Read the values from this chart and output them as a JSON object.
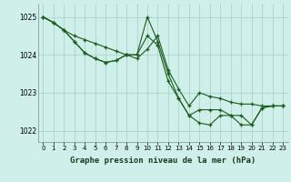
{
  "background_color": "#cff0ea",
  "grid_color": "#aad4cc",
  "line_color": "#1a5c1a",
  "title": "Graphe pression niveau de la mer (hPa)",
  "xlim": [
    -0.5,
    23.5
  ],
  "ylim": [
    1021.7,
    1025.35
  ],
  "yticks": [
    1022,
    1023,
    1024,
    1025
  ],
  "xticks": [
    0,
    1,
    2,
    3,
    4,
    5,
    6,
    7,
    8,
    9,
    10,
    11,
    12,
    13,
    14,
    15,
    16,
    17,
    18,
    19,
    20,
    21,
    22,
    23
  ],
  "series": [
    [
      1025.0,
      1024.85,
      1024.65,
      1024.5,
      1024.4,
      1024.3,
      1024.2,
      1024.1,
      1024.0,
      1023.9,
      1024.15,
      1024.5,
      1023.6,
      1023.1,
      1022.65,
      1023.0,
      1022.9,
      1022.85,
      1022.75,
      1022.7,
      1022.7,
      1022.65,
      1022.65,
      1022.65
    ],
    [
      1025.0,
      1024.85,
      1024.65,
      1024.35,
      1024.05,
      1023.9,
      1023.8,
      1023.85,
      1024.0,
      1024.0,
      1025.0,
      1024.35,
      1023.5,
      1022.85,
      1022.4,
      1022.2,
      1022.15,
      1022.4,
      1022.4,
      1022.15,
      1022.15,
      1022.6,
      1022.65,
      1022.65
    ],
    [
      1025.0,
      1024.85,
      1024.65,
      1024.35,
      1024.05,
      1023.9,
      1023.8,
      1023.85,
      1024.0,
      1024.0,
      1024.5,
      1024.25,
      1023.3,
      1022.85,
      1022.4,
      1022.55,
      1022.55,
      1022.55,
      1022.4,
      1022.4,
      1022.15,
      1022.6,
      1022.65,
      1022.65
    ]
  ]
}
